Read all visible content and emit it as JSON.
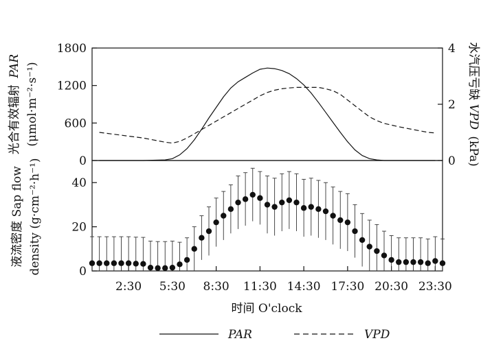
{
  "chart_data": [
    {
      "type": "line",
      "panel": "top",
      "ylabel_left": "光合有效辐射 PAR (μmol·m⁻²·s⁻¹)",
      "ylabel_left_line1": "光合有效辐射",
      "ylabel_left_var": "PAR",
      "ylabel_left_line2": "(μmol·m⁻²·s⁻¹)",
      "ylabel_right": "水汽压亏缺VPD (kPa)",
      "ylabel_right_cn": "水汽压亏缺",
      "ylabel_right_var": "VPD",
      "ylabel_right_unit": "(kPa)",
      "ylim_left": [
        0,
        1800
      ],
      "ylim_right": [
        0,
        4
      ],
      "yticks_left": [
        "0",
        "600",
        "1200",
        "1800"
      ],
      "yticks_right": [
        "0",
        "2",
        "4"
      ],
      "x_hours": [
        0.5,
        2,
        3.5,
        5,
        5.5,
        6,
        6.5,
        7,
        7.5,
        8,
        8.5,
        9,
        9.5,
        10,
        10.5,
        11,
        11.5,
        12,
        12.5,
        13,
        13.5,
        14,
        14.5,
        15,
        15.5,
        16,
        16.5,
        17,
        17.5,
        18,
        18.5,
        19,
        19.5,
        20,
        21,
        22,
        23,
        23.5
      ],
      "series": [
        {
          "name": "PAR",
          "axis": "left",
          "style": "solid",
          "values": [
            0,
            0,
            0,
            10,
            30,
            90,
            190,
            330,
            500,
            680,
            850,
            1020,
            1160,
            1260,
            1330,
            1400,
            1460,
            1480,
            1470,
            1440,
            1390,
            1310,
            1210,
            1080,
            930,
            770,
            610,
            450,
            300,
            170,
            80,
            30,
            10,
            0,
            0,
            0,
            0,
            0
          ]
        },
        {
          "name": "VPD",
          "axis": "right",
          "style": "dashed",
          "values": [
            1.0,
            0.9,
            0.8,
            0.65,
            0.62,
            0.68,
            0.8,
            0.95,
            1.1,
            1.25,
            1.4,
            1.55,
            1.7,
            1.85,
            2.0,
            2.15,
            2.3,
            2.42,
            2.5,
            2.55,
            2.58,
            2.6,
            2.6,
            2.6,
            2.6,
            2.55,
            2.48,
            2.35,
            2.15,
            1.95,
            1.75,
            1.55,
            1.42,
            1.32,
            1.2,
            1.1,
            1.0,
            0.98
          ]
        }
      ]
    },
    {
      "type": "scatter",
      "panel": "bottom",
      "ylabel": "液流密度 Sap flow density (g·cm⁻²·h⁻¹)",
      "ylabel_line1": "液流密度 Sap flow",
      "ylabel_line2": "density (g·cm⁻²·h⁻¹)",
      "xlabel": "时间  O'clock",
      "ylim": [
        0,
        50
      ],
      "yticks": [
        "0",
        "20",
        "40"
      ],
      "xticks": [
        "2:30",
        "5:30",
        "8:30",
        "11:30",
        "14:30",
        "17:30",
        "20:30",
        "23:30"
      ],
      "xticks_hours": [
        2.5,
        5.5,
        8.5,
        11.5,
        14.5,
        17.5,
        20.5,
        23.5
      ],
      "x_hours": [
        0,
        0.5,
        1,
        1.5,
        2,
        2.5,
        3,
        3.5,
        4,
        4.5,
        5,
        5.5,
        6,
        6.5,
        7,
        7.5,
        8,
        8.5,
        9,
        9.5,
        10,
        10.5,
        11,
        11.5,
        12,
        12.5,
        13,
        13.5,
        14,
        14.5,
        15,
        15.5,
        16,
        16.5,
        17,
        17.5,
        18,
        18.5,
        19,
        19.5,
        20,
        20.5,
        21,
        21.5,
        22,
        22.5,
        23,
        23.5,
        24
      ],
      "values": [
        3.5,
        3.5,
        3.5,
        3.5,
        3.5,
        3.5,
        3.3,
        3.2,
        1.5,
        1.3,
        1.3,
        1.5,
        3,
        5,
        10,
        15,
        18,
        22,
        25,
        28,
        31,
        32.5,
        34.5,
        33,
        30,
        29,
        31,
        32,
        31,
        28.5,
        29,
        28,
        27,
        25,
        23,
        22,
        18,
        14,
        11,
        9,
        7,
        5,
        4,
        4,
        4,
        4,
        3.5,
        4.5,
        3.5
      ],
      "errors": [
        12,
        12,
        12,
        12,
        12,
        12,
        12,
        12,
        12,
        12,
        12,
        12,
        10,
        10,
        10,
        10,
        11,
        11,
        11,
        11,
        12,
        12,
        12,
        12,
        13,
        13,
        13,
        13,
        13,
        13,
        13,
        13,
        13,
        13,
        13,
        13,
        12,
        12,
        12,
        12,
        11,
        11,
        11,
        11,
        11,
        11,
        11,
        11,
        11
      ]
    }
  ],
  "legend": {
    "par_label": "PAR",
    "vpd_label": "VPD"
  }
}
